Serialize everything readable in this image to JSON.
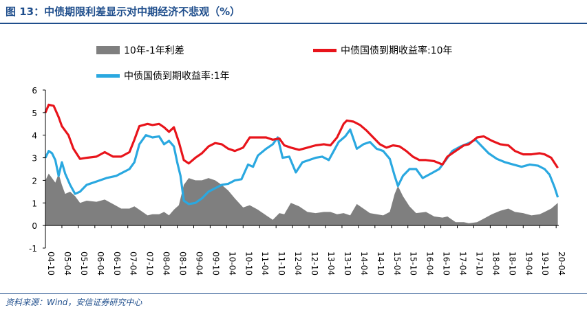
{
  "title": "图 13：中债期限利差显示对中期经济不悲观（%）",
  "source": "资料来源：Wind，安信证券研究中心",
  "colors": {
    "spread": "#7f7f7f",
    "y10": "#e8141b",
    "y1": "#2aa8e0",
    "title": "#1f4e8c"
  },
  "chart_data": {
    "type": "line",
    "ylim": [
      -1,
      6
    ],
    "yticks": [
      "-1",
      "0",
      "1",
      "2",
      "3",
      "4",
      "5",
      "6"
    ],
    "xlim": [
      2004.75,
      2020.33
    ],
    "xticks": [
      "04-10",
      "05-04",
      "05-10",
      "06-04",
      "06-10",
      "07-04",
      "07-10",
      "08-04",
      "08-10",
      "09-04",
      "09-10",
      "10-04",
      "10-10",
      "11-04",
      "11-10",
      "12-04",
      "12-10",
      "13-04",
      "13-10",
      "14-04",
      "14-10",
      "15-04",
      "15-10",
      "16-04",
      "16-10",
      "17-04",
      "17-10",
      "18-04",
      "18-10",
      "19-04",
      "19-10",
      "20-04"
    ],
    "legend_placement": "top",
    "series": [
      {
        "name": "中债国债到期收益率:10年",
        "type": "line",
        "x": [
          2004.75,
          2004.85,
          2005.0,
          2005.15,
          2005.25,
          2005.45,
          2005.6,
          2005.8,
          2006.0,
          2006.3,
          2006.55,
          2006.8,
          2007.05,
          2007.3,
          2007.45,
          2007.6,
          2007.85,
          2008.0,
          2008.2,
          2008.35,
          2008.5,
          2008.65,
          2008.8,
          2008.95,
          2009.1,
          2009.3,
          2009.5,
          2009.7,
          2009.9,
          2010.1,
          2010.3,
          2010.5,
          2010.75,
          2010.95,
          2011.2,
          2011.45,
          2011.65,
          2011.85,
          2012.0,
          2012.2,
          2012.45,
          2012.7,
          2012.95,
          2013.2,
          2013.4,
          2013.6,
          2013.8,
          2013.9,
          2014.1,
          2014.3,
          2014.5,
          2014.7,
          2014.9,
          2015.1,
          2015.3,
          2015.5,
          2015.7,
          2015.9,
          2016.1,
          2016.3,
          2016.55,
          2016.8,
          2016.95,
          2017.2,
          2017.45,
          2017.6,
          2017.85,
          2018.05,
          2018.3,
          2018.55,
          2018.8,
          2019.0,
          2019.25,
          2019.5,
          2019.75,
          2019.9,
          2020.1,
          2020.3
        ],
        "y": [
          5.0,
          5.35,
          5.3,
          4.8,
          4.4,
          4.0,
          3.4,
          2.95,
          3.0,
          3.05,
          3.25,
          3.05,
          3.05,
          3.25,
          3.8,
          4.4,
          4.5,
          4.45,
          4.5,
          4.35,
          4.15,
          4.35,
          3.7,
          2.9,
          2.75,
          3.0,
          3.2,
          3.5,
          3.65,
          3.6,
          3.4,
          3.3,
          3.45,
          3.9,
          3.9,
          3.9,
          3.8,
          3.85,
          3.55,
          3.45,
          3.35,
          3.45,
          3.55,
          3.6,
          3.55,
          3.9,
          4.5,
          4.65,
          4.6,
          4.45,
          4.2,
          3.9,
          3.6,
          3.45,
          3.55,
          3.5,
          3.3,
          3.05,
          2.9,
          2.9,
          2.85,
          2.7,
          3.05,
          3.3,
          3.55,
          3.6,
          3.9,
          3.95,
          3.75,
          3.6,
          3.55,
          3.3,
          3.15,
          3.15,
          3.2,
          3.15,
          3.0,
          2.55
        ]
      },
      {
        "name": "中债国债到期收益率:1年",
        "type": "line",
        "x": [
          2004.75,
          2004.85,
          2004.95,
          2005.05,
          2005.15,
          2005.25,
          2005.35,
          2005.5,
          2005.65,
          2005.8,
          2006.0,
          2006.3,
          2006.6,
          2006.9,
          2007.1,
          2007.3,
          2007.45,
          2007.6,
          2007.8,
          2008.0,
          2008.2,
          2008.35,
          2008.5,
          2008.65,
          2008.75,
          2008.85,
          2008.95,
          2009.1,
          2009.3,
          2009.5,
          2009.7,
          2009.9,
          2010.1,
          2010.3,
          2010.5,
          2010.7,
          2010.9,
          2011.05,
          2011.2,
          2011.45,
          2011.65,
          2011.8,
          2011.95,
          2012.15,
          2012.35,
          2012.55,
          2012.75,
          2012.95,
          2013.15,
          2013.35,
          2013.5,
          2013.65,
          2013.85,
          2014.0,
          2014.2,
          2014.4,
          2014.6,
          2014.8,
          2015.0,
          2015.2,
          2015.35,
          2015.45,
          2015.6,
          2015.8,
          2016.0,
          2016.2,
          2016.45,
          2016.7,
          2016.9,
          2017.1,
          2017.35,
          2017.6,
          2017.8,
          2018.0,
          2018.2,
          2018.45,
          2018.7,
          2018.95,
          2019.2,
          2019.45,
          2019.7,
          2019.9,
          2020.05,
          2020.2,
          2020.3
        ],
        "y": [
          3.0,
          3.3,
          3.2,
          2.9,
          2.2,
          2.8,
          2.3,
          1.8,
          1.4,
          1.5,
          1.8,
          1.95,
          2.1,
          2.2,
          2.35,
          2.5,
          2.8,
          3.6,
          4.0,
          3.9,
          3.95,
          3.6,
          3.75,
          3.5,
          2.8,
          2.2,
          1.1,
          0.95,
          1.0,
          1.2,
          1.5,
          1.65,
          1.8,
          1.85,
          2.0,
          2.05,
          2.7,
          2.6,
          3.1,
          3.4,
          3.6,
          3.9,
          3.0,
          3.05,
          2.35,
          2.8,
          2.9,
          3.0,
          3.05,
          2.9,
          3.3,
          3.7,
          3.95,
          4.25,
          3.4,
          3.6,
          3.7,
          3.4,
          3.3,
          2.95,
          2.2,
          1.75,
          2.2,
          2.5,
          2.5,
          2.1,
          2.3,
          2.5,
          2.9,
          3.3,
          3.5,
          3.65,
          3.8,
          3.5,
          3.2,
          2.95,
          2.8,
          2.7,
          2.6,
          2.7,
          2.65,
          2.5,
          2.25,
          1.7,
          1.25
        ]
      },
      {
        "name": "10年-1年利差",
        "type": "area",
        "x": [
          2004.75,
          2004.85,
          2004.95,
          2005.05,
          2005.15,
          2005.25,
          2005.35,
          2005.5,
          2005.65,
          2005.8,
          2006.0,
          2006.3,
          2006.55,
          2006.8,
          2007.05,
          2007.3,
          2007.45,
          2007.6,
          2007.85,
          2008.0,
          2008.2,
          2008.35,
          2008.5,
          2008.65,
          2008.8,
          2008.95,
          2009.1,
          2009.3,
          2009.5,
          2009.7,
          2009.9,
          2010.1,
          2010.3,
          2010.5,
          2010.75,
          2010.95,
          2011.2,
          2011.45,
          2011.65,
          2011.85,
          2012.0,
          2012.2,
          2012.45,
          2012.7,
          2012.95,
          2013.2,
          2013.4,
          2013.6,
          2013.8,
          2014.0,
          2014.2,
          2014.4,
          2014.6,
          2014.8,
          2015.0,
          2015.2,
          2015.35,
          2015.45,
          2015.6,
          2015.8,
          2016.0,
          2016.3,
          2016.55,
          2016.8,
          2016.95,
          2017.2,
          2017.45,
          2017.6,
          2017.85,
          2018.05,
          2018.3,
          2018.55,
          2018.8,
          2019.0,
          2019.25,
          2019.5,
          2019.75,
          2019.9,
          2020.1,
          2020.3
        ],
        "y": [
          2.0,
          2.3,
          2.1,
          1.9,
          2.3,
          1.8,
          1.4,
          1.5,
          1.3,
          1.0,
          1.1,
          1.05,
          1.15,
          0.95,
          0.75,
          0.75,
          0.85,
          0.7,
          0.45,
          0.5,
          0.5,
          0.6,
          0.45,
          0.7,
          0.9,
          1.8,
          2.1,
          2.0,
          2.0,
          2.1,
          2.0,
          1.8,
          1.55,
          1.2,
          0.8,
          0.9,
          0.7,
          0.45,
          0.25,
          0.55,
          0.5,
          1.0,
          0.85,
          0.6,
          0.55,
          0.6,
          0.6,
          0.5,
          0.55,
          0.45,
          0.95,
          0.75,
          0.55,
          0.5,
          0.45,
          0.6,
          1.4,
          1.75,
          1.3,
          0.85,
          0.55,
          0.6,
          0.4,
          0.35,
          0.4,
          0.15,
          0.15,
          0.1,
          0.15,
          0.3,
          0.5,
          0.65,
          0.75,
          0.6,
          0.55,
          0.45,
          0.5,
          0.6,
          0.75,
          1.0
        ]
      }
    ]
  }
}
